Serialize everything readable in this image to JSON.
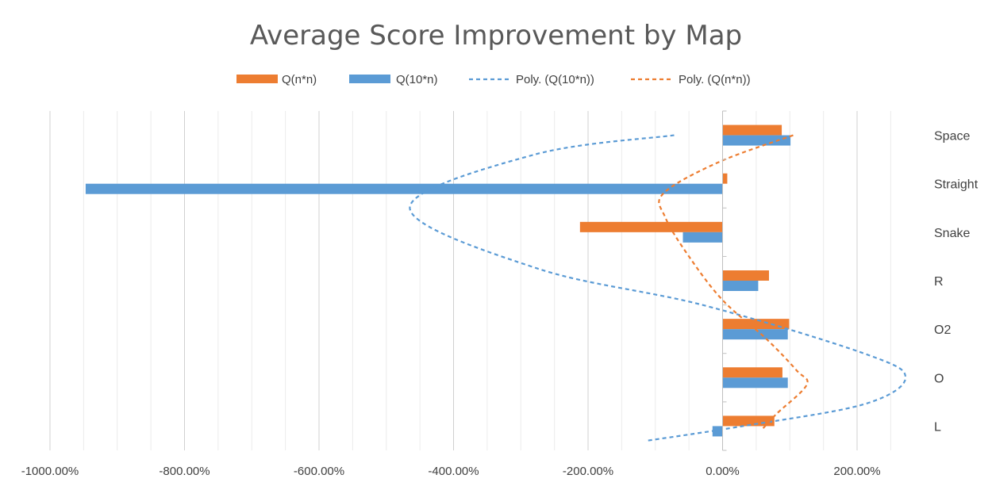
{
  "chart_data": {
    "type": "bar",
    "orientation": "horizontal",
    "title": "Average Score Improvement by Map",
    "xlabel": "",
    "ylabel": "",
    "categories": [
      "Space",
      "Straight",
      "Snake",
      "R",
      "O2",
      "O",
      "L"
    ],
    "series": [
      {
        "name": "Q(n*n)",
        "values": [
          88,
          7,
          -212,
          69,
          99,
          89,
          77
        ],
        "color": "#ED7D31"
      },
      {
        "name": "Q(10*n)",
        "values": [
          101,
          -947,
          -59,
          53,
          97,
          97,
          -15
        ],
        "color": "#5B9BD5"
      }
    ],
    "trendlines": [
      {
        "name": "Poly. (Q(10*n))",
        "of_series": "Q(10*n)",
        "type": "polynomial",
        "style": "dashed",
        "color": "#5B9BD5",
        "points": [
          [
            -72,
            0
          ],
          [
            -280,
            0.4
          ],
          [
            -465,
            1.5
          ],
          [
            -275,
            2.75
          ],
          [
            -30,
            3.5
          ],
          [
            210,
            4.5
          ],
          [
            272,
            5.0
          ],
          [
            210,
            5.55
          ],
          [
            30,
            6.0
          ],
          [
            -112,
            6.3
          ]
        ]
      },
      {
        "name": "Poly. (Q(n*n))",
        "of_series": "Q(n*n)",
        "type": "polynomial",
        "style": "dashed",
        "color": "#ED7D31",
        "points": [
          [
            105,
            0
          ],
          [
            -5,
            0.55
          ],
          [
            -88,
            1.2
          ],
          [
            -85,
            1.7
          ],
          [
            -50,
            2.5
          ],
          [
            0,
            3.4
          ],
          [
            65,
            4.2
          ],
          [
            110,
            4.85
          ],
          [
            125,
            5.15
          ],
          [
            80,
            5.75
          ],
          [
            60,
            6.05
          ]
        ]
      }
    ],
    "xlim": [
      -1000,
      280
    ],
    "x_ticks": [
      -1000,
      -800,
      -600,
      -400,
      -200,
      0,
      200
    ],
    "x_tick_labels": [
      "-1000.00%",
      "-800.00%",
      "-600.00%",
      "-400.00%",
      "-200.00%",
      "0.00%",
      "200.00%"
    ],
    "grid": true,
    "legend_position": "top"
  }
}
